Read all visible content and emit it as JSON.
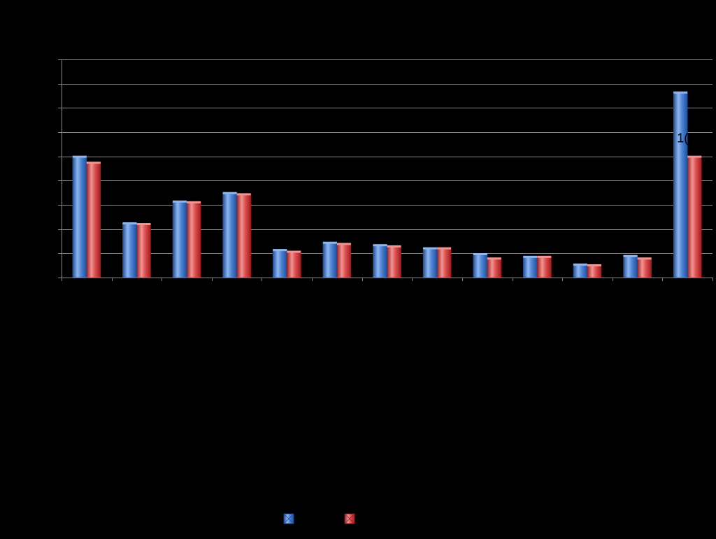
{
  "chart_data": {
    "type": "bar",
    "title": "",
    "xlabel": "",
    "ylabel": "",
    "ylim": [
      0,
      9
    ],
    "grid": true,
    "legend_position": "bottom",
    "categories": [
      "",
      "",
      "",
      "",
      "",
      "",
      "",
      "",
      "",
      "",
      "",
      "",
      ""
    ],
    "series": [
      {
        "values": [
          5.0,
          2.25,
          3.15,
          3.5,
          1.15,
          1.45,
          1.35,
          1.22,
          0.98,
          0.87,
          0.55,
          0.9,
          7.65
        ]
      },
      {
        "values": [
          4.75,
          2.22,
          3.12,
          3.45,
          1.08,
          1.4,
          1.3,
          1.22,
          0.8,
          0.87,
          0.52,
          0.8,
          5.0
        ]
      }
    ],
    "data_labels": [
      {
        "category_index": 12,
        "text": "1("
      }
    ],
    "colors": {
      "series1": "#4f86d8",
      "series1_dark": "#1f4f9a",
      "series1_light": "#8fb6ee",
      "series2": "#e0504f",
      "series2_dark": "#9a1f22",
      "series2_light": "#f19593",
      "grid": "#8c8c8c",
      "axis": "#8c8c8c",
      "background": "#000000"
    }
  }
}
